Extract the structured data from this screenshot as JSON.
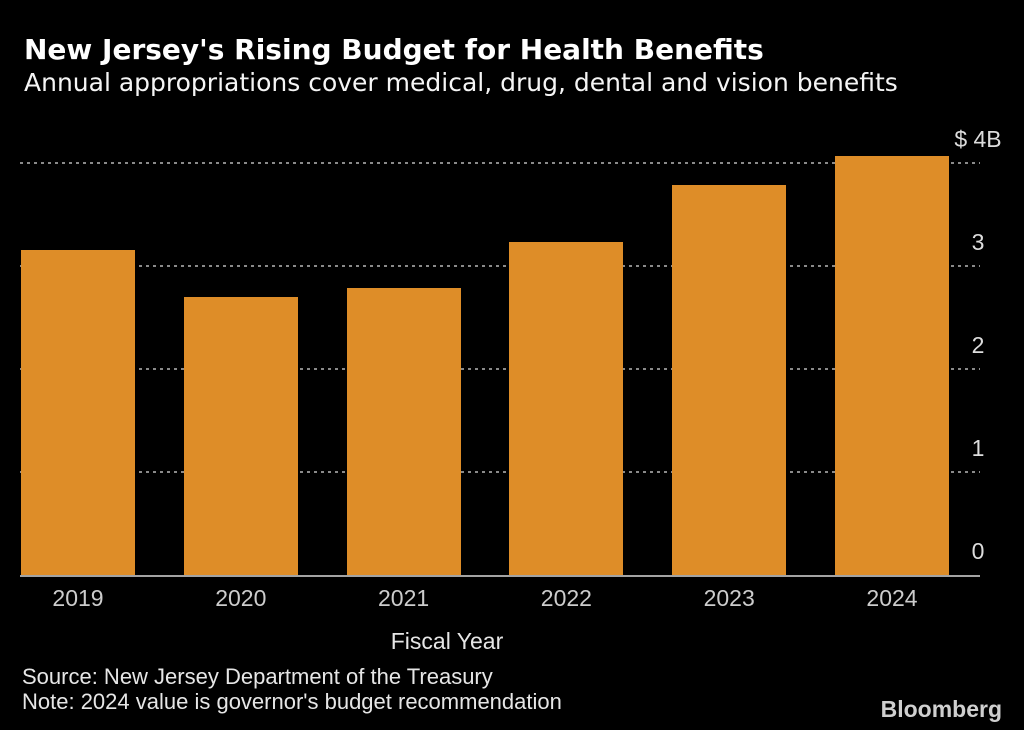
{
  "chart_data": {
    "type": "bar",
    "title": "New Jersey's Rising Budget for Health Benefits",
    "subtitle": "Annual appropriations cover medical, drug, dental and vision benefits",
    "categories": [
      "2019",
      "2020",
      "2021",
      "2022",
      "2023",
      "2024"
    ],
    "values": [
      3.16,
      2.7,
      2.79,
      3.23,
      3.79,
      4.07
    ],
    "xlabel": "Fiscal Year",
    "ylabel": "",
    "ylim": [
      0,
      4.1
    ],
    "y_ticks": [
      {
        "value": 4,
        "label": "$ 4B"
      },
      {
        "value": 3,
        "label": "3"
      },
      {
        "value": 2,
        "label": "2"
      },
      {
        "value": 1,
        "label": "1"
      },
      {
        "value": 0,
        "label": "0"
      }
    ],
    "grid": "horizontal-dotted",
    "legend": "none",
    "bar_color": "#DE8D28",
    "background_color": "#000000"
  },
  "footer": {
    "source": "Source: New Jersey Department of the Treasury",
    "note": "Note: 2024 value is governor's budget recommendation",
    "brand": "Bloomberg"
  }
}
